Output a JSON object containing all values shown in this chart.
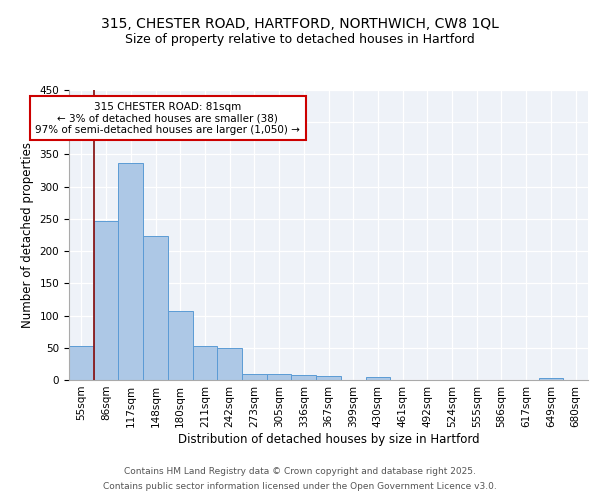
{
  "title1": "315, CHESTER ROAD, HARTFORD, NORTHWICH, CW8 1QL",
  "title2": "Size of property relative to detached houses in Hartford",
  "xlabel": "Distribution of detached houses by size in Hartford",
  "ylabel": "Number of detached properties",
  "categories": [
    "55sqm",
    "86sqm",
    "117sqm",
    "148sqm",
    "180sqm",
    "211sqm",
    "242sqm",
    "273sqm",
    "305sqm",
    "336sqm",
    "367sqm",
    "399sqm",
    "430sqm",
    "461sqm",
    "492sqm",
    "524sqm",
    "555sqm",
    "586sqm",
    "617sqm",
    "649sqm",
    "680sqm"
  ],
  "values": [
    53,
    247,
    336,
    223,
    107,
    52,
    50,
    10,
    10,
    7,
    6,
    0,
    4,
    0,
    0,
    0,
    0,
    0,
    0,
    3,
    0
  ],
  "bar_color": "#adc8e6",
  "bar_edge_color": "#5b9bd5",
  "vline_color": "#8b1a1a",
  "vline_x": 1,
  "annotation_text": "315 CHESTER ROAD: 81sqm\n← 3% of detached houses are smaller (38)\n97% of semi-detached houses are larger (1,050) →",
  "annotation_box_color": "white",
  "annotation_box_edge": "#cc0000",
  "ylim": [
    0,
    450
  ],
  "yticks": [
    0,
    50,
    100,
    150,
    200,
    250,
    300,
    350,
    400,
    450
  ],
  "background_color": "#eef2f8",
  "grid_color": "white",
  "footer1": "Contains HM Land Registry data © Crown copyright and database right 2025.",
  "footer2": "Contains public sector information licensed under the Open Government Licence v3.0.",
  "title_fontsize": 10,
  "subtitle_fontsize": 9,
  "axis_label_fontsize": 8.5,
  "tick_fontsize": 7.5,
  "annotation_fontsize": 7.5,
  "footer_fontsize": 6.5
}
